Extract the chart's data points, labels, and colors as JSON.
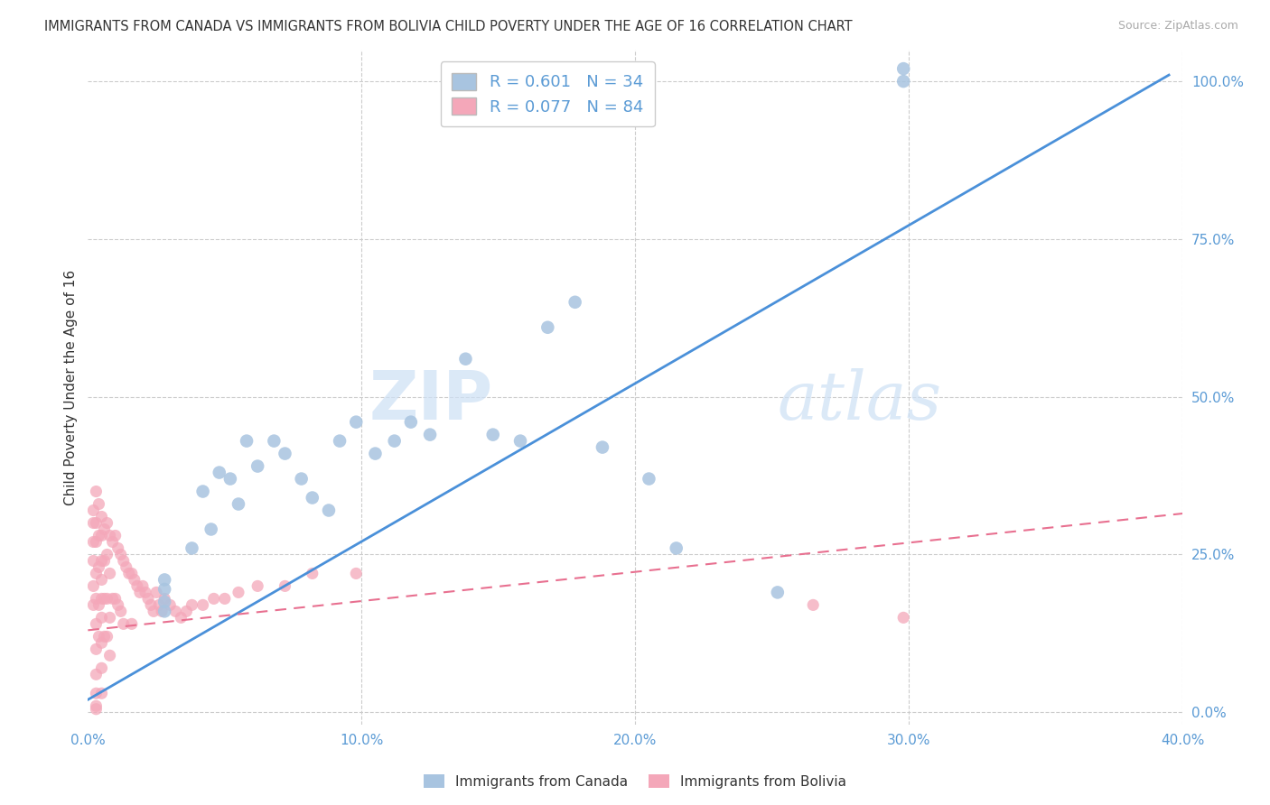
{
  "title": "IMMIGRANTS FROM CANADA VS IMMIGRANTS FROM BOLIVIA CHILD POVERTY UNDER THE AGE OF 16 CORRELATION CHART",
  "source": "Source: ZipAtlas.com",
  "xlabel_bottom": [
    "0.0%",
    "10.0%",
    "20.0%",
    "30.0%",
    "40.0%"
  ],
  "xlabel_bottom_vals": [
    0.0,
    0.1,
    0.2,
    0.3,
    0.4
  ],
  "ylabel_right": [
    "100.0%",
    "75.0%",
    "50.0%",
    "25.0%",
    "0.0%"
  ],
  "ylabel_right_vals": [
    1.0,
    0.75,
    0.5,
    0.25,
    0.0
  ],
  "ylabel_label": "Child Poverty Under the Age of 16",
  "xlim": [
    0,
    0.4
  ],
  "ylim": [
    -0.02,
    1.05
  ],
  "canada_R": 0.601,
  "canada_N": 34,
  "bolivia_R": 0.077,
  "bolivia_N": 84,
  "canada_color": "#a8c4e0",
  "bolivia_color": "#f4a7b9",
  "canada_line_color": "#4a90d9",
  "bolivia_line_color": "#e87090",
  "watermark_zip": "ZIP",
  "watermark_atlas": "atlas",
  "canada_line_x0": 0.0,
  "canada_line_y0": 0.02,
  "canada_line_x1": 0.395,
  "canada_line_y1": 1.01,
  "bolivia_line_x0": 0.0,
  "bolivia_line_y0": 0.13,
  "bolivia_line_x1": 0.4,
  "bolivia_line_y1": 0.315,
  "canada_scatter_x": [
    0.028,
    0.028,
    0.028,
    0.028,
    0.038,
    0.042,
    0.045,
    0.048,
    0.052,
    0.055,
    0.058,
    0.062,
    0.068,
    0.072,
    0.078,
    0.082,
    0.088,
    0.092,
    0.098,
    0.105,
    0.112,
    0.118,
    0.125,
    0.138,
    0.148,
    0.158,
    0.168,
    0.178,
    0.188,
    0.205,
    0.215,
    0.252,
    0.298,
    0.298
  ],
  "canada_scatter_y": [
    0.195,
    0.21,
    0.175,
    0.16,
    0.26,
    0.35,
    0.29,
    0.38,
    0.37,
    0.33,
    0.43,
    0.39,
    0.43,
    0.41,
    0.37,
    0.34,
    0.32,
    0.43,
    0.46,
    0.41,
    0.43,
    0.46,
    0.44,
    0.56,
    0.44,
    0.43,
    0.61,
    0.65,
    0.42,
    0.37,
    0.26,
    0.19,
    1.02,
    1.0
  ],
  "bolivia_scatter_x": [
    0.002,
    0.002,
    0.002,
    0.002,
    0.002,
    0.002,
    0.003,
    0.003,
    0.003,
    0.003,
    0.003,
    0.003,
    0.003,
    0.003,
    0.003,
    0.003,
    0.003,
    0.004,
    0.004,
    0.004,
    0.004,
    0.004,
    0.005,
    0.005,
    0.005,
    0.005,
    0.005,
    0.005,
    0.005,
    0.005,
    0.005,
    0.006,
    0.006,
    0.006,
    0.006,
    0.007,
    0.007,
    0.007,
    0.007,
    0.008,
    0.008,
    0.008,
    0.008,
    0.009,
    0.009,
    0.01,
    0.01,
    0.011,
    0.011,
    0.012,
    0.012,
    0.013,
    0.013,
    0.014,
    0.015,
    0.016,
    0.016,
    0.017,
    0.018,
    0.019,
    0.02,
    0.021,
    0.022,
    0.023,
    0.024,
    0.025,
    0.026,
    0.027,
    0.028,
    0.03,
    0.032,
    0.034,
    0.036,
    0.038,
    0.042,
    0.046,
    0.05,
    0.055,
    0.062,
    0.072,
    0.082,
    0.098,
    0.265,
    0.298
  ],
  "bolivia_scatter_y": [
    0.32,
    0.3,
    0.27,
    0.24,
    0.2,
    0.17,
    0.35,
    0.3,
    0.27,
    0.22,
    0.18,
    0.14,
    0.1,
    0.06,
    0.03,
    0.01,
    0.005,
    0.33,
    0.28,
    0.23,
    0.17,
    0.12,
    0.31,
    0.28,
    0.24,
    0.21,
    0.18,
    0.15,
    0.11,
    0.07,
    0.03,
    0.29,
    0.24,
    0.18,
    0.12,
    0.3,
    0.25,
    0.18,
    0.12,
    0.28,
    0.22,
    0.15,
    0.09,
    0.27,
    0.18,
    0.28,
    0.18,
    0.26,
    0.17,
    0.25,
    0.16,
    0.24,
    0.14,
    0.23,
    0.22,
    0.22,
    0.14,
    0.21,
    0.2,
    0.19,
    0.2,
    0.19,
    0.18,
    0.17,
    0.16,
    0.19,
    0.17,
    0.16,
    0.18,
    0.17,
    0.16,
    0.15,
    0.16,
    0.17,
    0.17,
    0.18,
    0.18,
    0.19,
    0.2,
    0.2,
    0.22,
    0.22,
    0.17,
    0.15
  ],
  "legend_labels": [
    "Immigrants from Canada",
    "Immigrants from Bolivia"
  ],
  "legend_colors": [
    "#a8c4e0",
    "#f4a7b9"
  ]
}
